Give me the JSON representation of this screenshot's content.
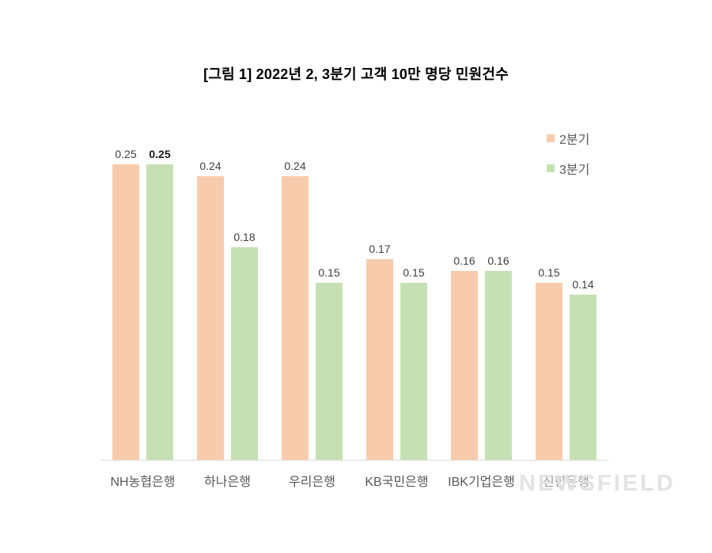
{
  "chart_data": {
    "type": "bar",
    "title": "[그림 1] 2022년 2, 3분기 고객 10만 명당 민원건수",
    "categories": [
      "NH농협은행",
      "하나은행",
      "우리은행",
      "KB국민은행",
      "IBK기업은행",
      "신한은행"
    ],
    "series": [
      {
        "name": "2분기",
        "color": "#F8CBAD",
        "values": [
          0.25,
          0.24,
          0.24,
          0.17,
          0.16,
          0.15
        ]
      },
      {
        "name": "3분기",
        "color": "#C6E0B4",
        "values": [
          0.25,
          0.18,
          0.15,
          0.15,
          0.16,
          0.14
        ]
      }
    ],
    "value_label_decimals": 2,
    "emphasized_value_label": {
      "series_index": 1,
      "category_index": 0
    },
    "ylim": [
      0,
      0.29
    ],
    "grid": false,
    "legend_position": "top-right",
    "axis_line_color": "#d9d9d9",
    "bar_label_color": "#404040",
    "category_label_color": "#595959",
    "faded_category_index": 5
  },
  "watermark": {
    "text": "NEWSFIELD"
  }
}
